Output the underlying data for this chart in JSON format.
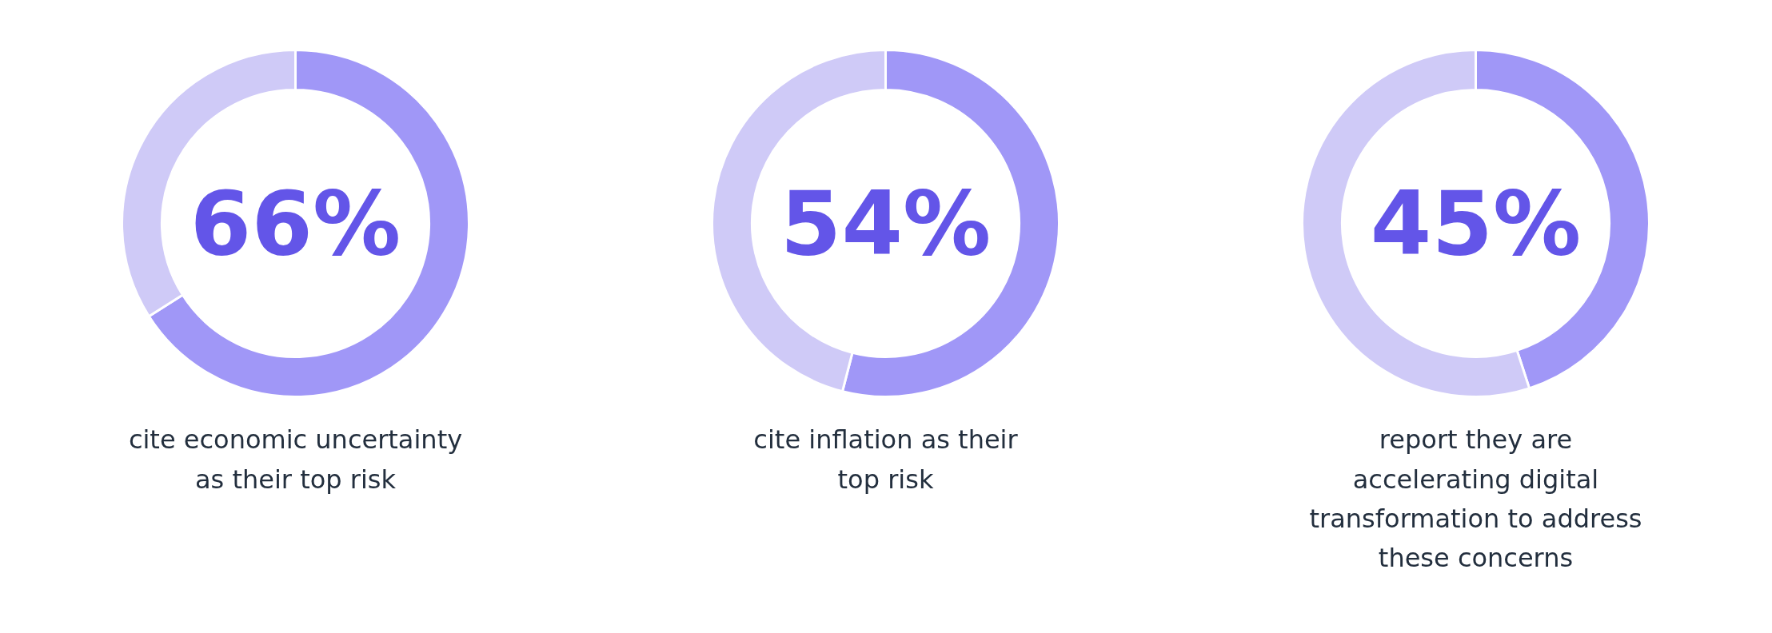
{
  "chart_data": [
    {
      "type": "donut",
      "categories": [
        null,
        null
      ],
      "values": [
        66,
        34
      ],
      "colors": [
        "#a097f7",
        "#cfcaf7"
      ],
      "annotations": [
        "66%",
        "cite economic uncertainty\nas their top risk"
      ]
    },
    {
      "type": "donut",
      "categories": [
        null,
        null
      ],
      "values": [
        54,
        46
      ],
      "colors": [
        "#a097f7",
        "#cfcaf7"
      ],
      "annotations": [
        "54%",
        "cite inflation as their\ntop risk"
      ]
    },
    {
      "type": "donut",
      "categories": [
        null,
        null
      ],
      "values": [
        45,
        55
      ],
      "colors": [
        "#a097f7",
        "#cfcaf7"
      ],
      "annotations": [
        "45%",
        "report they are\naccelerating digital\ntransformation to address\nthese concerns"
      ]
    }
  ]
}
